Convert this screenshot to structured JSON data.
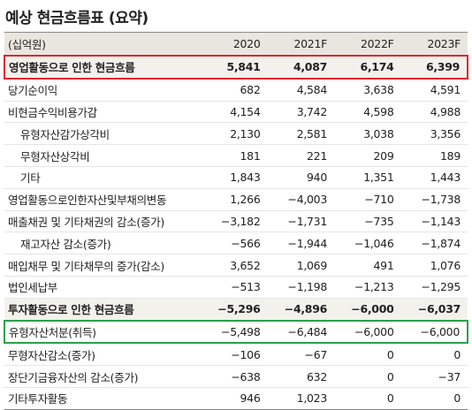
{
  "title": "예상 현금흐름표 (요약)",
  "header": [
    "(십억원)",
    "2020",
    "2021F",
    "2022F",
    "2023F"
  ],
  "rows": [
    {
      "label": "영업활동으로 인한 현금흐름",
      "v": [
        "5,841",
        "4,087",
        "6,174",
        "6,399"
      ],
      "style": "bold redbox"
    },
    {
      "label": "당기순이익",
      "v": [
        "682",
        "4,584",
        "3,638",
        "4,591"
      ],
      "style": ""
    },
    {
      "label": "비현금수익비용가감",
      "v": [
        "4,154",
        "3,742",
        "4,598",
        "4,988"
      ],
      "style": ""
    },
    {
      "label": "유형자산감가상각비",
      "v": [
        "2,130",
        "2,581",
        "3,038",
        "3,356"
      ],
      "style": "sub"
    },
    {
      "label": "무형자산상각비",
      "v": [
        "181",
        "221",
        "209",
        "189"
      ],
      "style": "sub"
    },
    {
      "label": "기타",
      "v": [
        "1,843",
        "940",
        "1,351",
        "1,443"
      ],
      "style": "sub"
    },
    {
      "label": "영업활동으로인한자산및부채의변동",
      "v": [
        "1,266",
        "−4,003",
        "−710",
        "−1,738"
      ],
      "style": ""
    },
    {
      "label": "매출채권 및 기타채권의 감소(증가)",
      "v": [
        "−3,182",
        "−1,731",
        "−735",
        "−1,143"
      ],
      "style": ""
    },
    {
      "label": "재고자산 감소(증가)",
      "v": [
        "−566",
        "−1,944",
        "−1,046",
        "−1,874"
      ],
      "style": "sub"
    },
    {
      "label": "매입채무 및 기타채무의 증가(감소)",
      "v": [
        "3,652",
        "1,069",
        "491",
        "1,076"
      ],
      "style": ""
    },
    {
      "label": "법인세납부",
      "v": [
        "−513",
        "−1,198",
        "−1,213",
        "−1,295"
      ],
      "style": ""
    },
    {
      "label": "투자활동으로 인한 현금흐름",
      "v": [
        "−5,296",
        "−4,896",
        "−6,000",
        "−6,037"
      ],
      "style": "bold"
    },
    {
      "label": "유형자산처분(취득)",
      "v": [
        "−5,498",
        "−6,484",
        "−6,000",
        "−6,000"
      ],
      "style": "greenbox"
    },
    {
      "label": "무형자산감소(증가)",
      "v": [
        "−106",
        "−67",
        "0",
        "0"
      ],
      "style": ""
    },
    {
      "label": "장단기금융자산의 감소(증가)",
      "v": [
        "−638",
        "632",
        "0",
        "−37"
      ],
      "style": ""
    },
    {
      "label": "기타투자활동",
      "v": [
        "946",
        "1,023",
        "0",
        "0"
      ],
      "style": "last"
    }
  ]
}
